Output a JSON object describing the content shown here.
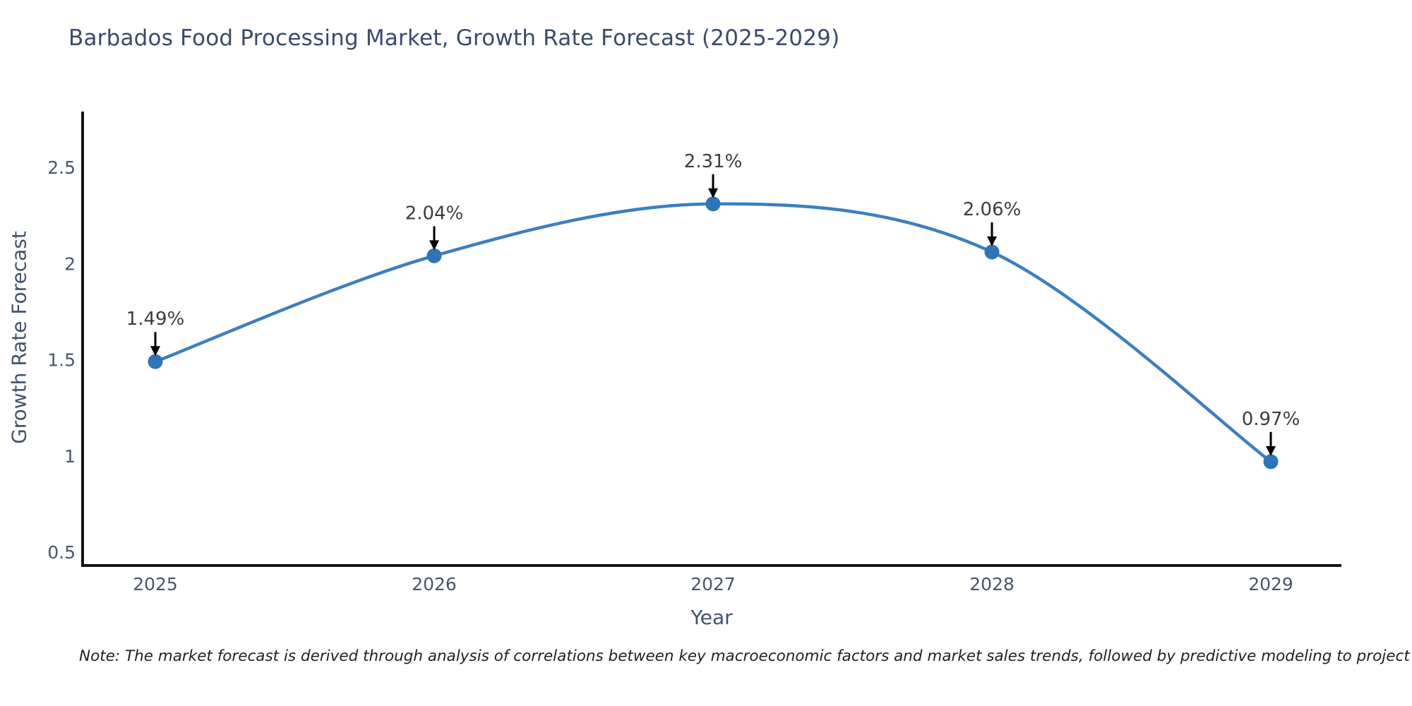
{
  "chart_data": {
    "type": "line",
    "title": "Barbados Food Processing Market, Growth Rate Forecast (2025-2029)",
    "xlabel": "Year",
    "ylabel": "Growth Rate Forecast",
    "x": [
      2025,
      2026,
      2027,
      2028,
      2029
    ],
    "values": [
      1.49,
      2.04,
      2.31,
      2.06,
      0.97
    ],
    "point_labels": [
      "1.49%",
      "2.04%",
      "2.31%",
      "2.06%",
      "0.97%"
    ],
    "x_tick_labels": [
      "2025",
      "2026",
      "2027",
      "2028",
      "2029"
    ],
    "y_tick_values": [
      0.5,
      1,
      1.5,
      2,
      2.5
    ],
    "y_tick_labels": [
      "0.5",
      "1",
      "1.5",
      "2",
      "2.5"
    ],
    "ylim": [
      0.43,
      2.86
    ],
    "xlim": [
      2024.73,
      2029.27
    ],
    "grid": false,
    "legend_position": "none",
    "line_shape": "spline",
    "annotation_arrows": true,
    "colors": {
      "line": "#3d7fbe",
      "marker": "#2f74b5",
      "axis": "#141414",
      "title_text": "#3a4a6b",
      "axis_label_text": "#42526b",
      "tick_text": "#4a5568",
      "annotation_text": "#3d3d3d",
      "arrow": "#000000",
      "background": "#ffffff"
    }
  },
  "note": {
    "text": "Note: The market forecast is derived through analysis of correlations between key macroeconomic factors and market sales trends, followed by predictive modeling to project future sales"
  }
}
